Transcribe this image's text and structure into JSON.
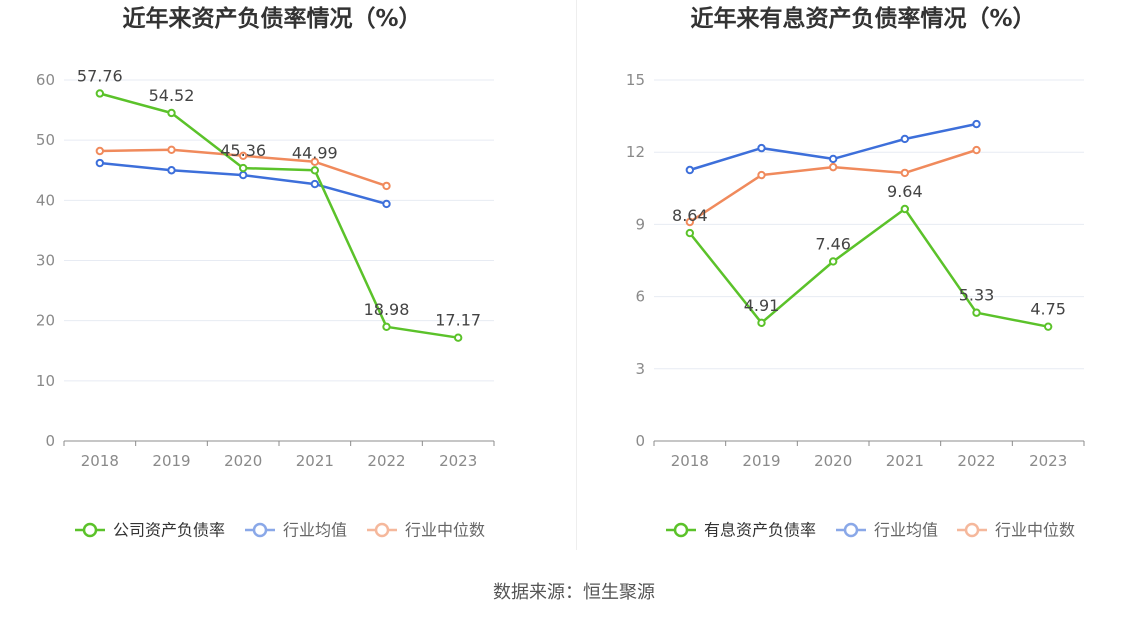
{
  "chart_data": [
    {
      "type": "line",
      "title": "近年来资产负债率情况（%）",
      "categories": [
        "2018",
        "2019",
        "2020",
        "2021",
        "2022",
        "2023"
      ],
      "ylim": [
        0,
        60
      ],
      "yticks": [
        0,
        10,
        20,
        30,
        40,
        50,
        60
      ],
      "grid": true,
      "legend": "bottom",
      "series": [
        {
          "name": "公司资产负债率",
          "color": "#5bc22a",
          "show_labels": true,
          "values": [
            57.76,
            54.52,
            45.36,
            44.99,
            18.98,
            17.17
          ]
        },
        {
          "name": "行业均值",
          "color": "#3d6fda",
          "show_labels": false,
          "values": [
            46.2,
            45.0,
            44.2,
            42.7,
            39.4,
            null
          ]
        },
        {
          "name": "行业中位数",
          "color": "#f08a5c",
          "show_labels": false,
          "values": [
            48.2,
            48.4,
            47.4,
            46.4,
            42.4,
            null
          ]
        }
      ]
    },
    {
      "type": "line",
      "title": "近年来有息资产负债率情况（%）",
      "categories": [
        "2018",
        "2019",
        "2020",
        "2021",
        "2022",
        "2023"
      ],
      "ylim": [
        0,
        15
      ],
      "yticks": [
        0,
        3,
        6,
        9,
        12,
        15
      ],
      "grid": true,
      "legend": "bottom",
      "series": [
        {
          "name": "有息资产负债率",
          "color": "#5bc22a",
          "show_labels": true,
          "values": [
            8.64,
            4.91,
            7.46,
            9.64,
            5.33,
            4.75
          ]
        },
        {
          "name": "行业均值",
          "color": "#3d6fda",
          "show_labels": false,
          "values": [
            11.26,
            12.17,
            11.72,
            12.55,
            13.17,
            null
          ]
        },
        {
          "name": "行业中位数",
          "color": "#f08a5c",
          "show_labels": false,
          "values": [
            9.1,
            11.05,
            11.38,
            11.14,
            12.09,
            null
          ]
        }
      ]
    }
  ],
  "source": "数据来源：恒生聚源"
}
